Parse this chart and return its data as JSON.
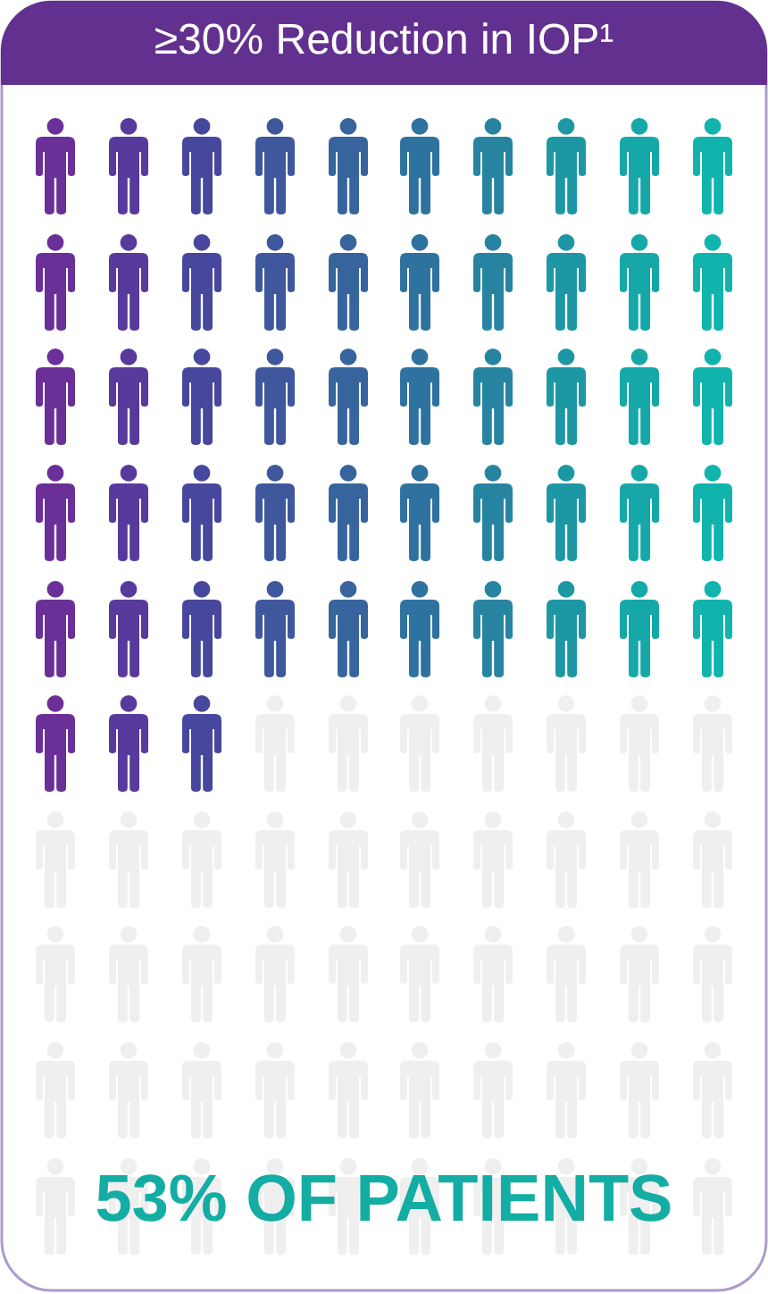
{
  "chart_data": {
    "type": "other",
    "title": "≥30% Reduction in IOP¹",
    "values": [
      53
    ],
    "value_labels": [
      "53% OF PATIENTS"
    ]
  }
}
